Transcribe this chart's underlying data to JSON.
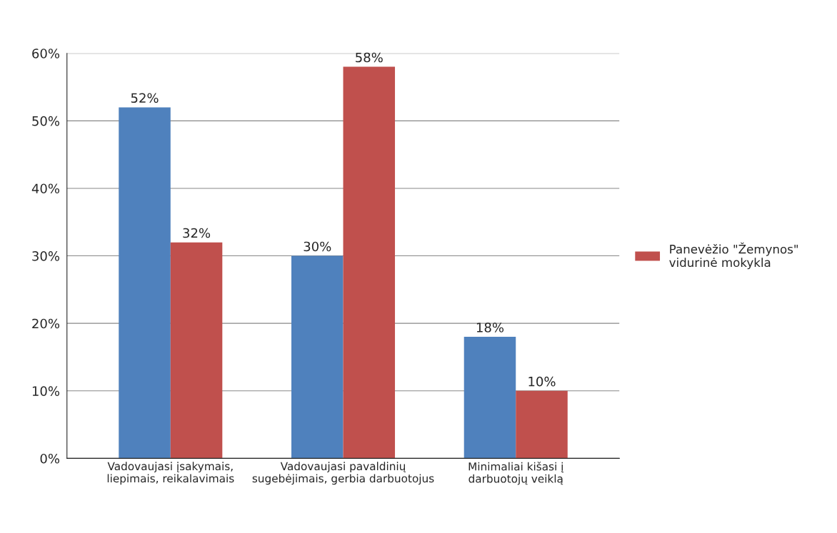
{
  "chart_data": {
    "type": "bar",
    "categories": [
      "Vadovaujasi įsakymais,\nliepimais, reikalavimais",
      "Vadovaujasi pavaldinių\nsugebėjimais, gerbia darbuotojus",
      "Minimaliai kišasi į\ndarbuotojų veiklą"
    ],
    "series": [
      {
        "color": "#4f81bd",
        "values": [
          52,
          30,
          18
        ],
        "value_labels": [
          "52%",
          "30%",
          "18%"
        ]
      },
      {
        "name": "Panevėžio \"Žemynos\"\nvidurinė mokykla",
        "color": "#c0504d",
        "values": [
          32,
          58,
          10
        ],
        "value_labels": [
          "32%",
          "58%",
          "10%"
        ]
      }
    ],
    "ylim": [
      0,
      60
    ],
    "yticks": [
      {
        "value": 0,
        "label": "0%"
      },
      {
        "value": 10,
        "label": "10%"
      },
      {
        "value": 20,
        "label": "20%"
      },
      {
        "value": 30,
        "label": "30%"
      },
      {
        "value": 40,
        "label": "40%"
      },
      {
        "value": 50,
        "label": "50%"
      },
      {
        "value": 60,
        "label": "60%"
      }
    ],
    "grid": "y",
    "legend": "right"
  }
}
